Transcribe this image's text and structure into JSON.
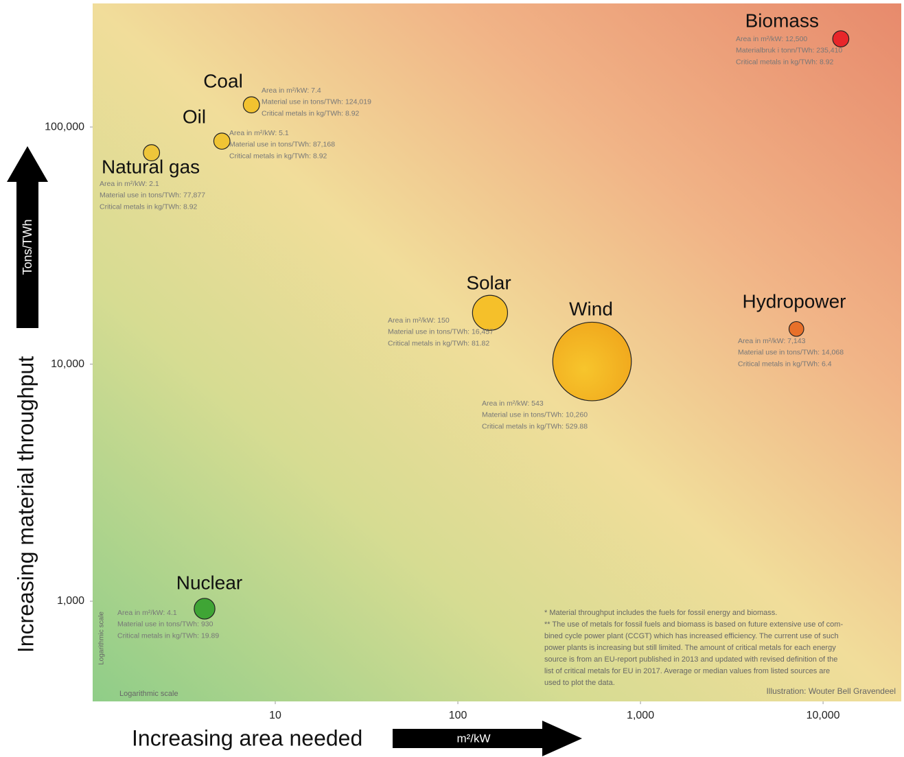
{
  "chart_data": {
    "type": "bubble",
    "x_label": "Increasing area needed",
    "x_unit": "m²/kW",
    "y_label": "Increasing material throughput",
    "y_unit": "Tons/TWh",
    "x_scale_note": "Logarithmic scale",
    "y_scale_note": "Logarithmic scale",
    "xscale": "log",
    "yscale": "log",
    "grid": false,
    "xlim": [
      1,
      26800
    ],
    "ylim": [
      378,
      332000
    ],
    "xticks": [
      10,
      100,
      {
        "value": 1000,
        "label": "1,000"
      },
      {
        "value": 10000,
        "label": "10,000"
      }
    ],
    "yticks": [
      {
        "value": 1000,
        "label": "1,000"
      },
      {
        "value": 10000,
        "label": "10,000"
      },
      {
        "value": 100000,
        "label": "100,000"
      }
    ],
    "series": [
      {
        "name": "Biomass",
        "color": "#e8262a",
        "x": [
          12500
        ],
        "values": [
          235410
        ],
        "sizes": [
          8.92
        ],
        "notes": [
          "Area in m²/kW: 12,500",
          "Materialbruk i tonn/TWh: 235,410",
          "Critical metals in kg/TWh: 8.92"
        ]
      },
      {
        "name": "Coal",
        "color": "#f2c230",
        "x": [
          7.4
        ],
        "values": [
          124019
        ],
        "sizes": [
          8.92
        ],
        "notes": [
          "Area in m²/kW: 7.4",
          "Material use in tons/TWh: 124,019",
          "Critical metals in kg/TWh: 8.92"
        ]
      },
      {
        "name": "Oil",
        "color": "#f0c434",
        "x": [
          5.1
        ],
        "values": [
          87168
        ],
        "sizes": [
          8.92
        ],
        "notes": [
          "Area in m²/kW: 5.1",
          "Material use in tons/TWh: 87,168",
          "Critical metals in kg/TWh: 8.92"
        ]
      },
      {
        "name": "Natural gas",
        "color": "#eec53a",
        "x": [
          2.1
        ],
        "values": [
          77877
        ],
        "sizes": [
          8.92
        ],
        "notes": [
          "Area in m²/kW: 2.1",
          "Material use in tons/TWh: 77,877",
          "Critical metals in kg/TWh: 8.92"
        ]
      },
      {
        "name": "Solar",
        "color": "#f5c02a",
        "x": [
          150
        ],
        "values": [
          16457
        ],
        "sizes": [
          81.82
        ],
        "notes": [
          "Area in m²/kW: 150",
          "Material use in tons/TWh: 16,457",
          "Critical metals in kg/TWh: 81.82"
        ]
      },
      {
        "name": "Wind",
        "color": "#f5b321",
        "x": [
          543
        ],
        "values": [
          10260
        ],
        "sizes": [
          529.88
        ],
        "notes": [
          "Area in m²/kW: 543",
          "Material use in tons/TWh: 10,260",
          "Critical metals in kg/TWh: 529.88"
        ]
      },
      {
        "name": "Hydropower",
        "color": "#e8702a",
        "x": [
          7143
        ],
        "values": [
          14068
        ],
        "sizes": [
          6.4
        ],
        "notes": [
          "Area in m²/kW: 7,143",
          "Material use in tons/TWh: 14,068",
          "Critical metals in kg/TWh: 6.4"
        ]
      },
      {
        "name": "Nuclear",
        "color": "#3fa535",
        "x": [
          4.1
        ],
        "values": [
          930
        ],
        "sizes": [
          19.89
        ],
        "notes": [
          "Area in m²/kW: 4.1",
          "Material use in tons/TWh: 930",
          "Critical metals in kg/TWh: 19.89"
        ]
      }
    ],
    "footnotes": [
      "* Material throughput includes the fuels for fossil energy and biomass.",
      "** The use of metals for fossil fuels and biomass is based on future extensive use of com-",
      "bined cycle power plant (CCGT) which has increased efficiency. The current use of such",
      "power plants is increasing but still limited. The amount of critical metals for each energy",
      "source is from an EU-report published in 2013 and updated with revised definition of the",
      "list of critical metals for EU in 2017. Average or median values from listed sources are",
      "used to plot the data."
    ],
    "credit": "Illustration: Wouter Bell Gravendeel"
  }
}
